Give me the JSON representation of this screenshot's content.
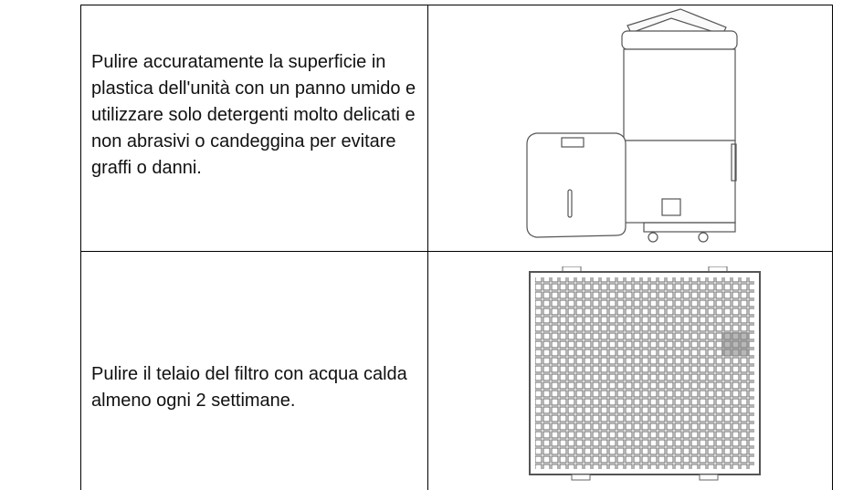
{
  "table": {
    "rows": [
      [
        "Pulire accuratamente la superficie in plastica dell'unità con un panno umido e utilizzare solo detergenti molto delicati e non abrasivi o candeggina per evitare graffi o danni."
      ],
      [
        "Pulire il telaio del filtro con acqua calda almeno ogni 2 settimane."
      ]
    ]
  }
}
